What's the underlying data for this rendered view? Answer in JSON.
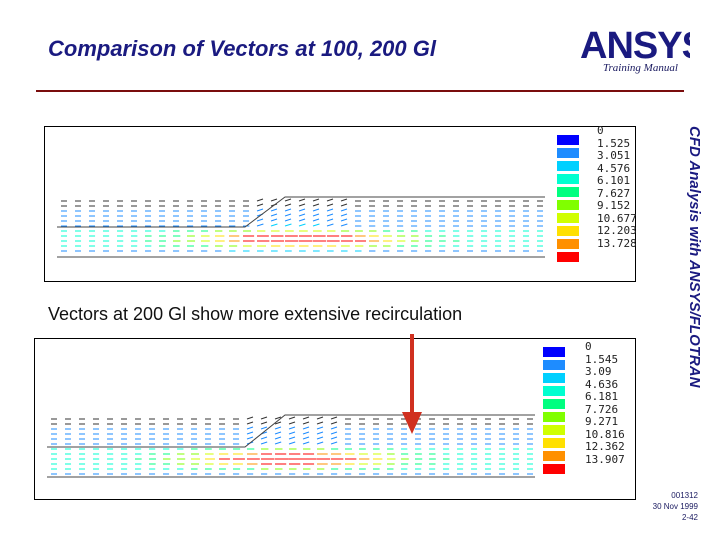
{
  "header": {
    "title": "Comparison of Vectors at 100, 200 Gl",
    "logo_text": "ANSYS",
    "training_label": "Training Manual"
  },
  "side_banner": "CFD Analysis with ANSYS/FLOTRAN",
  "plot_top": {
    "legend": [
      "0",
      "1.525",
      "3.051",
      "4.576",
      "6.101",
      "7.627",
      "9.152",
      "10.677",
      "12.203",
      "13.728"
    ]
  },
  "caption": "Vectors at 200 Gl show more extensive recirculation",
  "plot_bottom": {
    "legend": [
      "0",
      "1.545",
      "3.09",
      "4.636",
      "6.181",
      "7.726",
      "9.271",
      "10.816",
      "12.362",
      "13.907"
    ]
  },
  "legend_colors": [
    "#0000ff",
    "#1e8cff",
    "#00d0ff",
    "#00ffd0",
    "#00ff80",
    "#80ff00",
    "#d0ff00",
    "#ffe000",
    "#ff9000",
    "#ff0000"
  ],
  "footer": {
    "code": "001312",
    "date": "30 Nov 1999",
    "page": "2-42"
  }
}
